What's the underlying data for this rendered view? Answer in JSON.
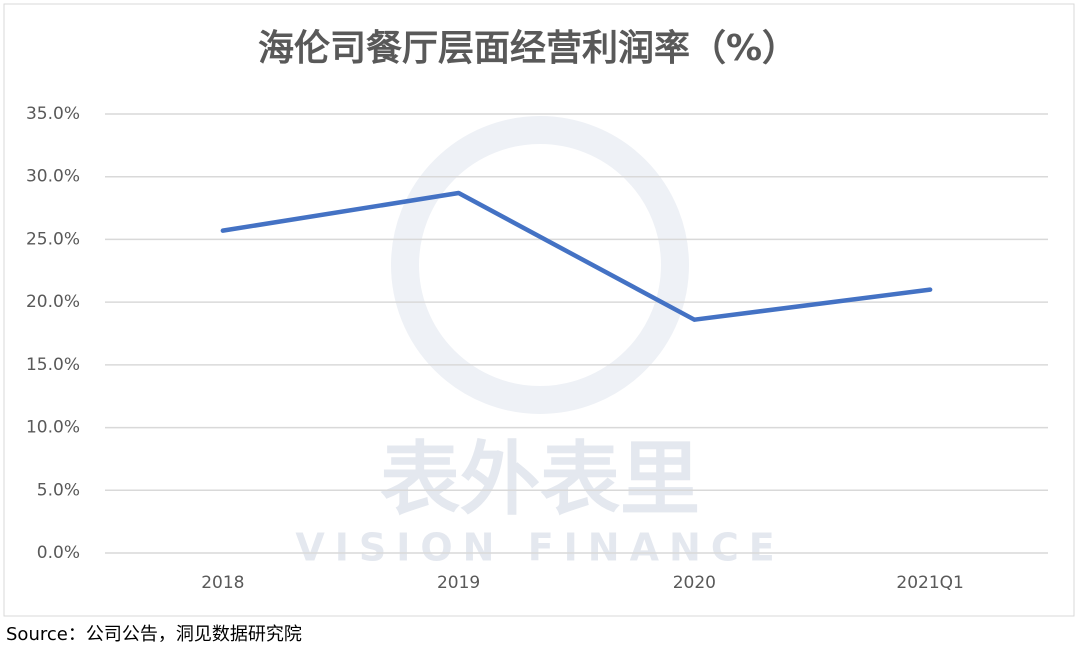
{
  "chart_data": {
    "type": "line",
    "title": "海伦司餐厅层面经营利润率（%）",
    "categories": [
      "2018",
      "2019",
      "2020",
      "2021Q1"
    ],
    "series": [
      {
        "name": "餐厅层面经营利润率",
        "color": "#4472c4",
        "values": [
          25.7,
          28.7,
          18.6,
          21.0
        ]
      }
    ],
    "ylim": [
      0,
      35
    ],
    "yticks": [
      {
        "value": 0,
        "label": "0.0%"
      },
      {
        "value": 5,
        "label": "5.0%"
      },
      {
        "value": 10,
        "label": "10.0%"
      },
      {
        "value": 15,
        "label": "15.0%"
      },
      {
        "value": 20,
        "label": "20.0%"
      },
      {
        "value": 25,
        "label": "25.0%"
      },
      {
        "value": 30,
        "label": "30.0%"
      },
      {
        "value": 35,
        "label": "35.0%"
      }
    ],
    "grid": true,
    "legend": false,
    "watermark": [
      "表外表里",
      "VISION FINANCE"
    ],
    "source": "Source：公司公告，洞见数据研究院"
  }
}
